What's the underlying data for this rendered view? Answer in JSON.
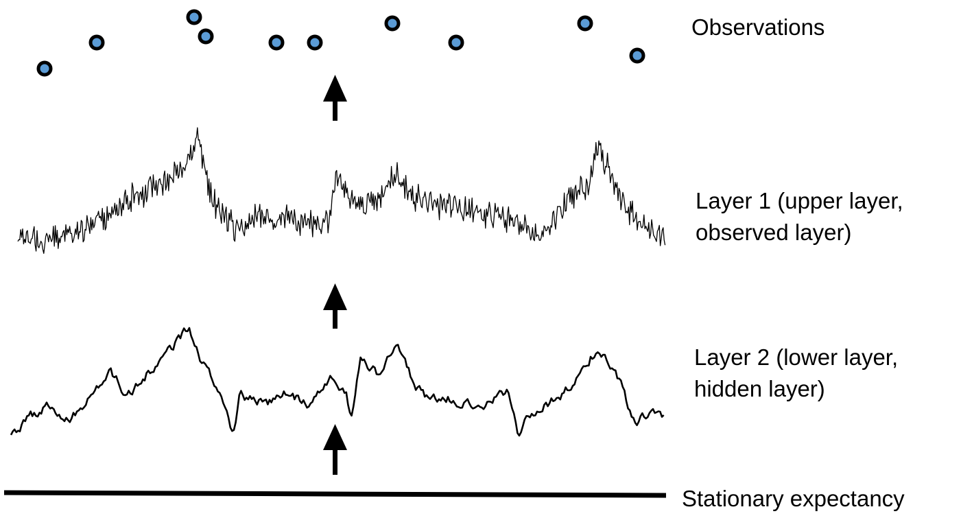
{
  "labels": {
    "observations": "Observations",
    "layer1": [
      "Layer 1 (upper layer,",
      "observed layer)"
    ],
    "layer2": [
      "Layer 2 (lower layer,",
      "hidden layer)"
    ],
    "stationary": "Stationary expectancy"
  },
  "colors": {
    "observation_fill": "#5b9bd5",
    "observation_ring": "#000000",
    "trace": "#000000",
    "arrow": "#000000",
    "baseline": "#000000",
    "background": "#ffffff"
  },
  "observations_count": 10,
  "arrows": [
    {
      "from": "layer1",
      "to": "observations"
    },
    {
      "from": "layer2",
      "to": "layer1"
    },
    {
      "from": "stationary-expectancy",
      "to": "layer2"
    }
  ]
}
